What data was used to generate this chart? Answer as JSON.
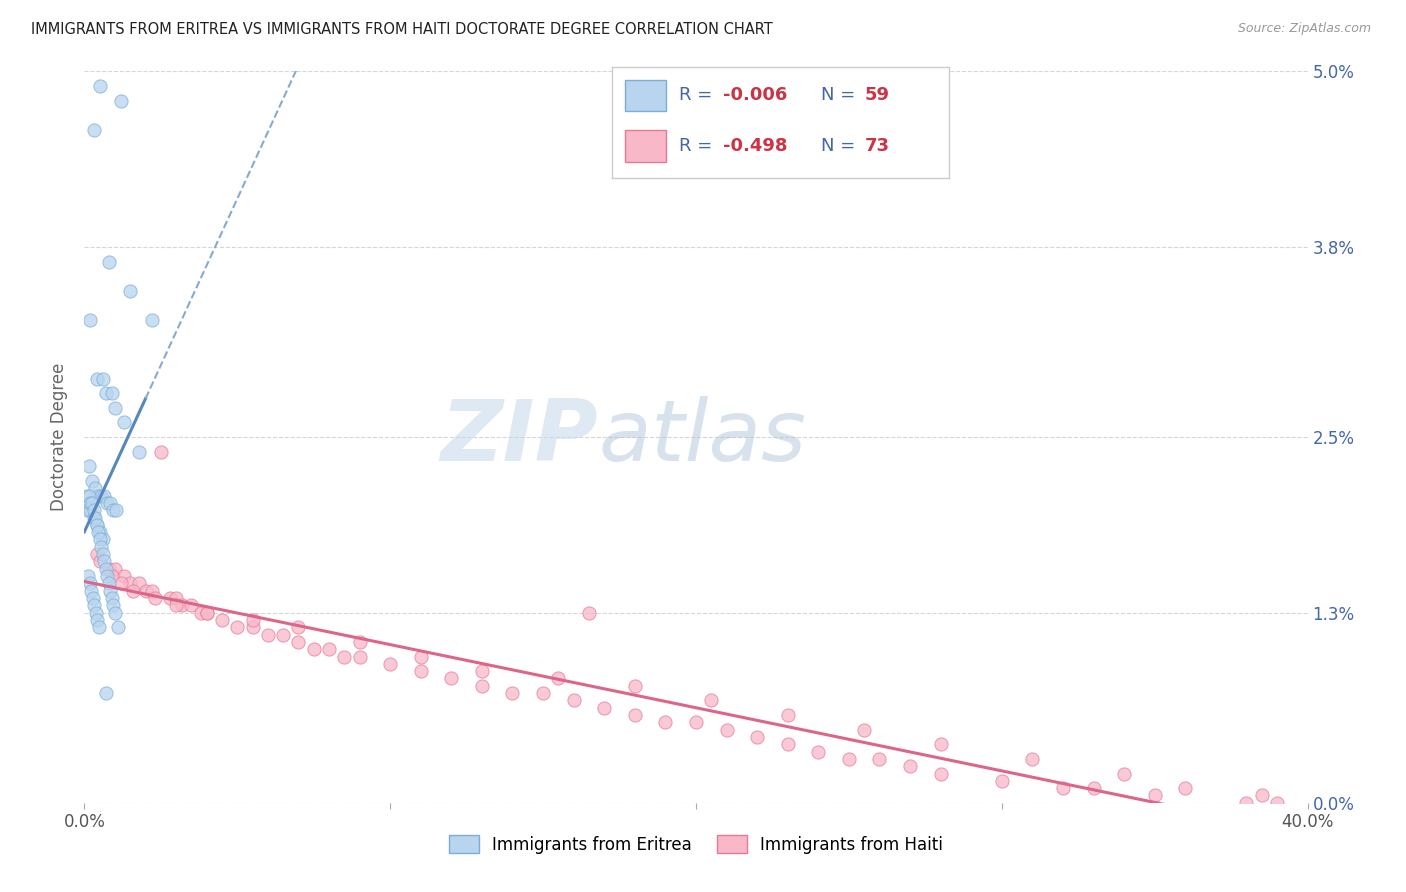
{
  "title": "IMMIGRANTS FROM ERITREA VS IMMIGRANTS FROM HAITI DOCTORATE DEGREE CORRELATION CHART",
  "source": "Source: ZipAtlas.com",
  "ylabel": "Doctorate Degree",
  "ytick_values": [
    0.0,
    1.3,
    2.5,
    3.8,
    5.0
  ],
  "xlim": [
    0.0,
    40.0
  ],
  "ylim": [
    0.0,
    5.0
  ],
  "legend_eritrea_R": "-0.006",
  "legend_eritrea_N": "59",
  "legend_haiti_R": "-0.498",
  "legend_haiti_N": "73",
  "color_eritrea_fill": "#b8d4ee",
  "color_eritrea_edge": "#7aaed6",
  "color_haiti_fill": "#f8b8c8",
  "color_haiti_edge": "#e87898",
  "color_line_eritrea_solid": "#5588bb",
  "color_line_eritrea_dash": "#88aacc",
  "color_line_haiti": "#dd6688",
  "color_legend_text": "#4466aa",
  "color_legend_value": "#cc3344",
  "background_color": "#ffffff",
  "grid_color": "#cccccc",
  "watermark_zip": "ZIP",
  "watermark_atlas": "atlas",
  "eritrea_x": [
    0.5,
    1.2,
    0.3,
    0.8,
    1.5,
    2.2,
    0.2,
    0.4,
    0.6,
    0.7,
    0.9,
    1.0,
    1.3,
    1.8,
    0.15,
    0.25,
    0.35,
    0.45,
    0.55,
    0.65,
    0.75,
    0.85,
    0.95,
    1.05,
    0.1,
    0.2,
    0.3,
    0.4,
    0.5,
    0.6,
    0.1,
    0.15,
    0.2,
    0.25,
    0.3,
    0.35,
    0.4,
    0.45,
    0.5,
    0.55,
    0.6,
    0.65,
    0.7,
    0.75,
    0.8,
    0.85,
    0.9,
    0.95,
    1.0,
    1.1,
    0.12,
    0.18,
    0.22,
    0.28,
    0.32,
    0.38,
    0.42,
    0.48,
    0.72
  ],
  "eritrea_y": [
    4.9,
    4.8,
    4.6,
    3.7,
    3.5,
    3.3,
    3.3,
    2.9,
    2.9,
    2.8,
    2.8,
    2.7,
    2.6,
    2.4,
    2.3,
    2.2,
    2.15,
    2.1,
    2.1,
    2.1,
    2.05,
    2.05,
    2.0,
    2.0,
    2.0,
    2.0,
    1.95,
    1.9,
    1.85,
    1.8,
    2.1,
    2.1,
    2.05,
    2.05,
    2.0,
    1.95,
    1.9,
    1.85,
    1.8,
    1.75,
    1.7,
    1.65,
    1.6,
    1.55,
    1.5,
    1.45,
    1.4,
    1.35,
    1.3,
    1.2,
    1.55,
    1.5,
    1.45,
    1.4,
    1.35,
    1.3,
    1.25,
    1.2,
    0.75
  ],
  "haiti_x": [
    0.4,
    0.8,
    1.0,
    1.3,
    1.5,
    1.8,
    2.0,
    2.2,
    2.5,
    2.8,
    3.0,
    3.2,
    3.5,
    3.8,
    4.0,
    4.5,
    5.0,
    5.5,
    6.0,
    6.5,
    7.0,
    7.5,
    8.0,
    8.5,
    9.0,
    10.0,
    11.0,
    12.0,
    13.0,
    14.0,
    15.0,
    16.0,
    17.0,
    18.0,
    19.0,
    20.0,
    21.0,
    22.0,
    23.0,
    24.0,
    25.0,
    26.0,
    27.0,
    28.0,
    30.0,
    32.0,
    33.0,
    35.0,
    38.0,
    39.0,
    0.5,
    0.9,
    1.2,
    1.6,
    2.3,
    3.0,
    4.0,
    5.5,
    7.0,
    9.0,
    11.0,
    13.0,
    15.5,
    18.0,
    20.5,
    23.0,
    25.5,
    28.0,
    31.0,
    34.0,
    36.0,
    38.5,
    16.5
  ],
  "haiti_y": [
    1.7,
    1.6,
    1.6,
    1.55,
    1.5,
    1.5,
    1.45,
    1.45,
    2.4,
    1.4,
    1.4,
    1.35,
    1.35,
    1.3,
    1.3,
    1.25,
    1.2,
    1.2,
    1.15,
    1.15,
    1.1,
    1.05,
    1.05,
    1.0,
    1.0,
    0.95,
    0.9,
    0.85,
    0.8,
    0.75,
    0.75,
    0.7,
    0.65,
    0.6,
    0.55,
    0.55,
    0.5,
    0.45,
    0.4,
    0.35,
    0.3,
    0.3,
    0.25,
    0.2,
    0.15,
    0.1,
    0.1,
    0.05,
    0.0,
    0.0,
    1.65,
    1.55,
    1.5,
    1.45,
    1.4,
    1.35,
    1.3,
    1.25,
    1.2,
    1.1,
    1.0,
    0.9,
    0.85,
    0.8,
    0.7,
    0.6,
    0.5,
    0.4,
    0.3,
    0.2,
    0.1,
    0.05,
    1.3
  ],
  "eritrea_line_x0": 0.0,
  "eritrea_line_x_solid_end": 2.0,
  "eritrea_line_y0": 2.1,
  "eritrea_line_y1": 1.95,
  "eritrea_line_y_end": 1.85,
  "haiti_line_y0": 1.65,
  "haiti_line_y1": 0.0
}
